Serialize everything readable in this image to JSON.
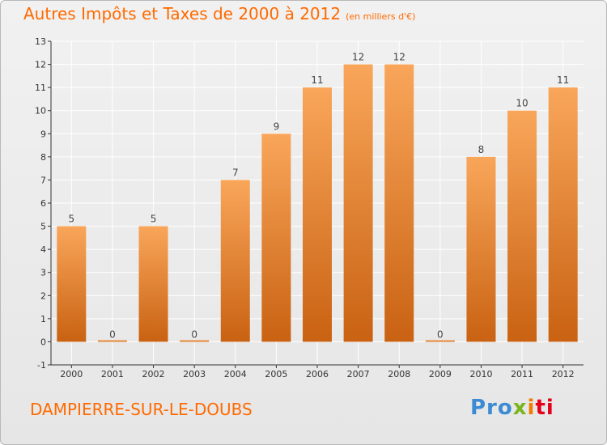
{
  "title": "Autres Impôts et Taxes de 2000 à 2012",
  "subtitle": "(en milliers d'€)",
  "commune": "DAMPIERRE-SUR-LE-DOUBS",
  "logo": {
    "text": "Proxiti",
    "parts": [
      "Pro",
      "x",
      "i",
      "ti"
    ]
  },
  "colors": {
    "title": "#ff6a00",
    "bar_top": "#f9a65a",
    "bar_bottom": "#c96212",
    "axis": "#333333",
    "grid": "#ffffff"
  },
  "chart_data": {
    "type": "bar",
    "categories": [
      "2000",
      "2001",
      "2002",
      "2003",
      "2004",
      "2005",
      "2006",
      "2007",
      "2008",
      "2009",
      "2010",
      "2011",
      "2012"
    ],
    "values": [
      5,
      0,
      5,
      0,
      7,
      9,
      11,
      12,
      12,
      0,
      8,
      10,
      11
    ],
    "ylim": [
      -1,
      13
    ],
    "yticks": [
      -1,
      0,
      1,
      2,
      3,
      4,
      5,
      6,
      7,
      8,
      9,
      10,
      11,
      12,
      13
    ],
    "grid": true,
    "xlabel": "",
    "ylabel": ""
  }
}
